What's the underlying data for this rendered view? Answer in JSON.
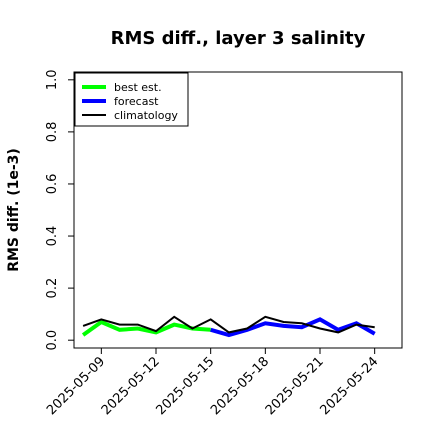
{
  "chart_data": {
    "type": "line",
    "title": "RMS diff., layer 3 salinity",
    "xlabel": "",
    "ylabel": "RMS diff. (1e-3)",
    "ylim": [
      -0.03,
      1.03
    ],
    "yticks": [
      0.0,
      0.2,
      0.4,
      0.6,
      0.8,
      1.0
    ],
    "ytick_labels": [
      "0.0",
      "0.2",
      "0.4",
      "0.6",
      "0.8",
      "1.0"
    ],
    "xlim": [
      "2025-05-07T12",
      "2025-05-25T12"
    ],
    "xticks": [
      "2025-05-09",
      "2025-05-12",
      "2025-05-15",
      "2025-05-18",
      "2025-05-21",
      "2025-05-24"
    ],
    "xtick_colors": [
      "#000000",
      "#000000",
      "#228B22",
      "#000000",
      "#000000",
      "#000000"
    ],
    "grid": false,
    "legend_position": "top-left",
    "series": [
      {
        "name": "best est.",
        "color": "#00ff00",
        "x": [
          "2025-05-08",
          "2025-05-09",
          "2025-05-10",
          "2025-05-11",
          "2025-05-12",
          "2025-05-13",
          "2025-05-14",
          "2025-05-15"
        ],
        "values": [
          0.02,
          0.07,
          0.04,
          0.045,
          0.03,
          0.06,
          0.045,
          0.04
        ]
      },
      {
        "name": "forecast",
        "color": "#0000ff",
        "x": [
          "2025-05-15",
          "2025-05-16",
          "2025-05-17",
          "2025-05-18",
          "2025-05-19",
          "2025-05-20",
          "2025-05-21",
          "2025-05-22",
          "2025-05-23",
          "2025-05-24"
        ],
        "values": [
          0.04,
          0.02,
          0.04,
          0.065,
          0.055,
          0.05,
          0.08,
          0.04,
          0.065,
          0.025
        ]
      },
      {
        "name": "climatology",
        "color": "#000000",
        "x": [
          "2025-05-08",
          "2025-05-09",
          "2025-05-10",
          "2025-05-11",
          "2025-05-12",
          "2025-05-13",
          "2025-05-14",
          "2025-05-15",
          "2025-05-16",
          "2025-05-17",
          "2025-05-18",
          "2025-05-19",
          "2025-05-20",
          "2025-05-21",
          "2025-05-22",
          "2025-05-23",
          "2025-05-24"
        ],
        "values": [
          0.055,
          0.08,
          0.06,
          0.06,
          0.035,
          0.09,
          0.045,
          0.08,
          0.03,
          0.045,
          0.09,
          0.07,
          0.065,
          0.045,
          0.03,
          0.06,
          0.05
        ]
      }
    ]
  }
}
